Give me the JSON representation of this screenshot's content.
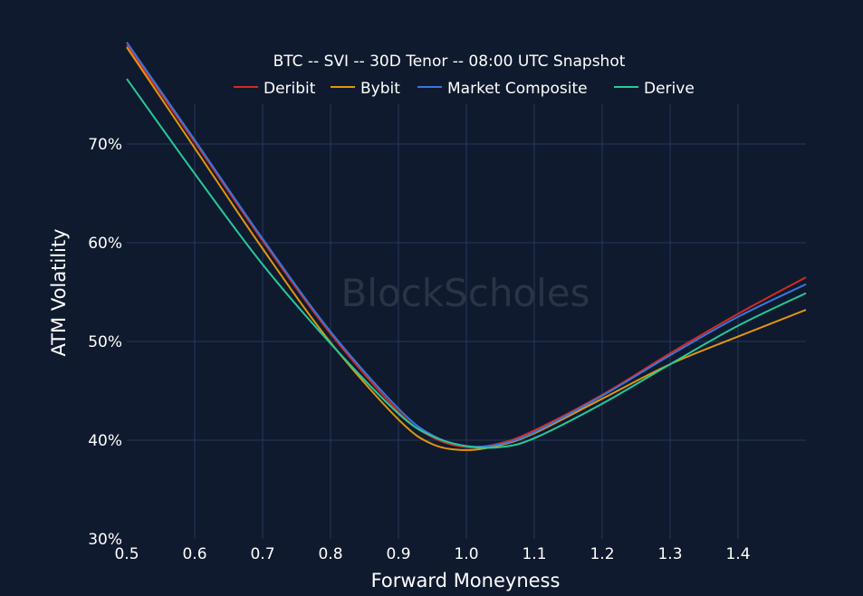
{
  "chart_data": {
    "type": "line",
    "title": "BTC -- SVI -- 30D Tenor -- 08:00 UTC Snapshot",
    "xlabel": "Forward Moneyness",
    "ylabel": "ATM Volatility",
    "xlim": [
      0.5,
      1.5
    ],
    "ylim": [
      30,
      80
    ],
    "x_ticks": [
      "0.5",
      "0.6",
      "0.7",
      "0.8",
      "0.9",
      "1.0",
      "1.1",
      "1.2",
      "1.3",
      "1.4"
    ],
    "y_ticks": [
      "30%",
      "40%",
      "50%",
      "60%",
      "70%"
    ],
    "grid": true,
    "legend_position": "top-center",
    "watermark": "BlockScholes",
    "series": [
      {
        "name": "Deribit",
        "color": "#d42a22",
        "x": [
          0.5,
          0.6,
          0.7,
          0.8,
          0.9,
          0.95,
          1.0,
          1.05,
          1.1,
          1.2,
          1.3,
          1.4,
          1.5
        ],
        "y": [
          80.0,
          70.2,
          60.2,
          50.8,
          42.9,
          40.3,
          39.3,
          39.7,
          41.0,
          44.6,
          48.8,
          52.8,
          56.5
        ]
      },
      {
        "name": "Bybit",
        "color": "#e0960e",
        "x": [
          0.5,
          0.6,
          0.7,
          0.8,
          0.9,
          0.95,
          1.0,
          1.05,
          1.1,
          1.2,
          1.3,
          1.4,
          1.5
        ],
        "y": [
          79.8,
          69.6,
          59.4,
          49.9,
          42.1,
          39.6,
          39.0,
          39.5,
          40.7,
          44.2,
          47.7,
          50.5,
          53.2
        ]
      },
      {
        "name": "Market Composite",
        "color": "#3677e0",
        "x": [
          0.5,
          0.6,
          0.7,
          0.8,
          0.9,
          0.95,
          1.0,
          1.05,
          1.1,
          1.2,
          1.3,
          1.4,
          1.5
        ],
        "y": [
          80.3,
          70.4,
          60.4,
          51.0,
          43.2,
          40.5,
          39.4,
          39.6,
          40.8,
          44.5,
          48.6,
          52.5,
          55.8
        ]
      },
      {
        "name": "Derive",
        "color": "#26c99a",
        "x": [
          0.5,
          0.6,
          0.7,
          0.8,
          0.9,
          0.95,
          1.0,
          1.05,
          1.1,
          1.2,
          1.3,
          1.4,
          1.5
        ],
        "y": [
          76.6,
          67.0,
          57.8,
          49.8,
          42.7,
          40.4,
          39.4,
          39.3,
          40.2,
          43.7,
          47.7,
          51.6,
          54.9
        ]
      }
    ]
  }
}
